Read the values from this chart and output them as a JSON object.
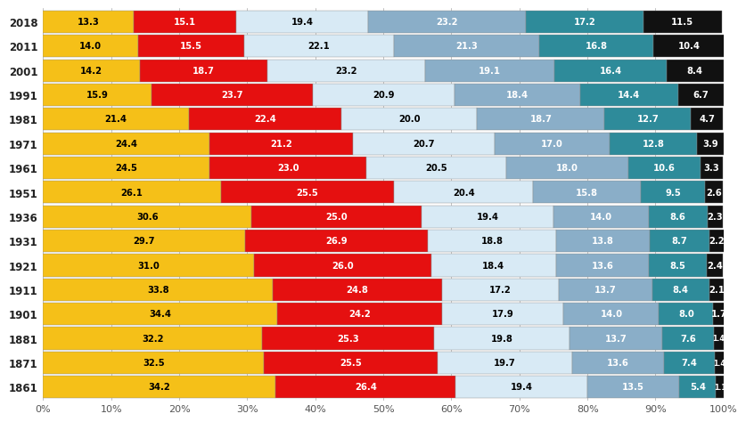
{
  "years": [
    2018,
    2011,
    2001,
    1991,
    1981,
    1971,
    1961,
    1951,
    1936,
    1931,
    1921,
    1911,
    1901,
    1881,
    1871,
    1861
  ],
  "segments": [
    [
      13.3,
      15.1,
      19.4,
      23.2,
      17.2,
      11.5
    ],
    [
      14.0,
      15.5,
      22.1,
      21.3,
      16.8,
      10.4
    ],
    [
      14.2,
      18.7,
      23.2,
      19.1,
      16.4,
      8.4
    ],
    [
      15.9,
      23.7,
      20.9,
      18.4,
      14.4,
      6.7
    ],
    [
      21.4,
      22.4,
      20.0,
      18.7,
      12.7,
      4.7
    ],
    [
      24.4,
      21.2,
      20.7,
      17.0,
      12.8,
      3.9
    ],
    [
      24.5,
      23.0,
      20.5,
      18.0,
      10.6,
      3.3
    ],
    [
      26.1,
      25.5,
      20.4,
      15.8,
      9.5,
      2.6
    ],
    [
      30.6,
      25.0,
      19.4,
      14.0,
      8.6,
      2.3
    ],
    [
      29.7,
      26.9,
      18.8,
      13.8,
      8.7,
      2.2
    ],
    [
      31.0,
      26.0,
      18.4,
      13.6,
      8.5,
      2.4
    ],
    [
      33.8,
      24.8,
      17.2,
      13.7,
      8.4,
      2.1
    ],
    [
      34.4,
      24.2,
      17.9,
      14.0,
      8.0,
      1.7
    ],
    [
      32.2,
      25.3,
      19.8,
      13.7,
      7.6,
      1.4
    ],
    [
      32.5,
      25.5,
      19.7,
      13.6,
      7.4,
      1.4
    ],
    [
      34.2,
      26.4,
      19.4,
      13.5,
      5.4,
      1.1
    ]
  ],
  "colors": [
    "#F5C018",
    "#E51010",
    "#D8EAF5",
    "#8AAEC8",
    "#2E8B9A",
    "#111111"
  ],
  "bar_height": 0.92,
  "background_color": "#FFFFFF",
  "text_color_yellow": "#000000",
  "text_color_light_blue": "#000000",
  "text_color_others": "#FFFFFF",
  "label_fontsize": 7.2,
  "year_fontsize": 8.5,
  "tick_fontsize": 8.0,
  "figwidth": 8.26,
  "figheight": 4.63,
  "dpi": 100
}
